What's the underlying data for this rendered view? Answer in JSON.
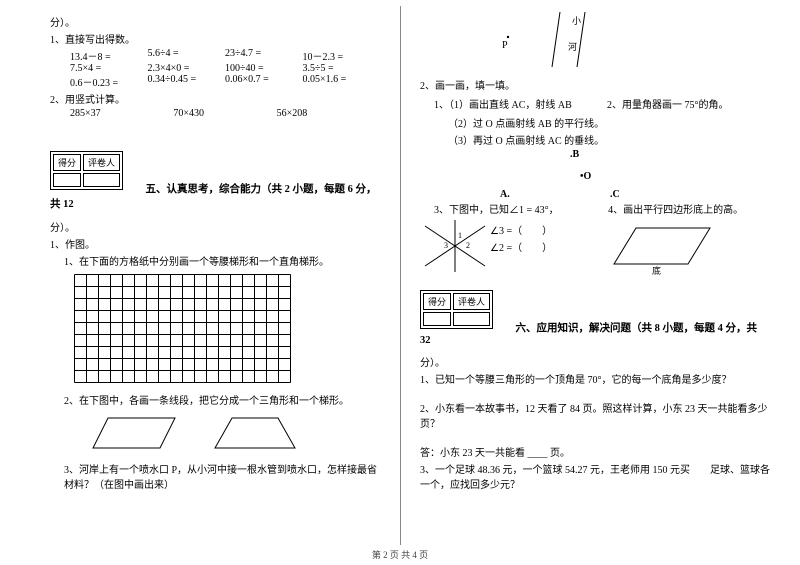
{
  "footer": "第 2 页 共 4 页",
  "left": {
    "points_suffix": "分）。",
    "q1": "1、直接写出得数。",
    "calc": [
      [
        "13.4－8 =",
        "5.6÷4 =",
        "23÷4.7 =",
        "10－2.3 ="
      ],
      [
        "7.5×4 =",
        "2.3×4×0 =",
        "100÷40 =",
        "3.5÷5 ="
      ],
      [
        "0.6－0.23 =",
        "0.34÷0.45 =",
        "0.06×0.7 =",
        "0.05×1.6 ="
      ]
    ],
    "q2": "2、用竖式计算。",
    "calc2": [
      "285×37",
      "70×430",
      "56×208"
    ],
    "scorebox": {
      "c1": "得分",
      "c2": "评卷人"
    },
    "sec5_title": "五、认真思考，综合能力（共 2 小题，每题 6 分，共 12",
    "sec5_suffix": "分）。",
    "s5_q1": "1、作图。",
    "s5_q1_1": "1、在下面的方格纸中分别画一个等腰梯形和一个直角梯形。",
    "grid": {
      "cols": 18,
      "rows": 9,
      "cell": 12,
      "stroke": "#000000"
    },
    "s5_q1_2": "2、在下图中，各画一条线段，把它分成一个三角形和一个梯形。",
    "s5_q1_3": "3、河岸上有一个喷水口 P，从小河中接一根水管到喷水口，怎样接最省材料？（在图中画出来）"
  },
  "right": {
    "p_label": "P",
    "river_top": "小",
    "river_bot": "河",
    "s2": "2、画一画，填一填。",
    "s2_1a": "1、（1）画出直线 AC，射线 AB",
    "s2_1b_right": "2、用量角器画一 75°的角。",
    "s2_1_2": "（2）过 O 点画射线 AB 的平行线。",
    "s2_1_3": "（3）再过 O 点画射线 AC 的垂线。",
    "pt_B": ".B",
    "pt_O": "O",
    "pt_A": "A.",
    "pt_C": ".C",
    "s2_3": "3、下图中，已知∠1 = 43°，",
    "s2_3b": "∠3 =（　　）",
    "s2_3c": "∠2 =（　　）",
    "s2_4": "4、画出平行四边形底上的高。",
    "para_base": "底",
    "scorebox": {
      "c1": "得分",
      "c2": "评卷人"
    },
    "sec6_title": "六、应用知识，解决问题（共 8 小题，每题 4 分，共 32",
    "sec6_suffix": "分）。",
    "q1": "1、已知一个等腰三角形的一个顶角是 70°，它的每一个底角是多少度？",
    "q2": "2、小东看一本故事书，12 天看了 84 页。照这样计算，小东 23 天一共能看多少页？",
    "q2_ans": "答：小东 23 天一共能看 ____ 页。",
    "q3": "3、一个足球 48.36 元，一个篮球 54.27 元，王老师用 150 元买　　足球、篮球各一个，应找回多少元？"
  },
  "style": {
    "shape_stroke": "#000000",
    "river_stroke": "#000000"
  }
}
